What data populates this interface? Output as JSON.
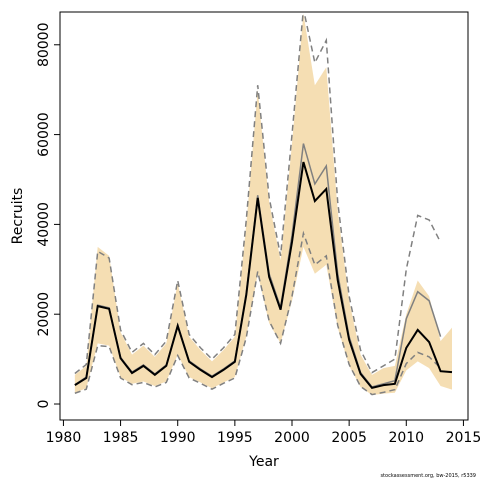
{
  "chart_data": {
    "type": "line",
    "x_label": "Year",
    "y_label": "Recruits",
    "footnote": "stockassessment.org, bw-2015, r5339",
    "x": [
      1981,
      1982,
      1983,
      1984,
      1985,
      1986,
      1987,
      1988,
      1989,
      1990,
      1991,
      1992,
      1993,
      1994,
      1995,
      1996,
      1997,
      1998,
      1999,
      2000,
      2001,
      2002,
      2003,
      2004,
      2005,
      2006,
      2007,
      2008,
      2009,
      2010,
      2011,
      2012,
      2013,
      2014
    ],
    "band": {
      "color": "#f5deb3",
      "upper": [
        6500,
        8500,
        35000,
        33000,
        16000,
        11000,
        13000,
        10500,
        13500,
        27000,
        15000,
        12000,
        9500,
        12000,
        15000,
        40000,
        70000,
        45000,
        32000,
        58000,
        87000,
        71000,
        75000,
        43000,
        23000,
        11000,
        6500,
        8000,
        8500,
        20000,
        27500,
        24000,
        14000,
        17000
      ],
      "lower": [
        2500,
        3500,
        13500,
        13000,
        6000,
        4500,
        5000,
        4000,
        5000,
        11000,
        6000,
        4800,
        3500,
        4800,
        6000,
        15000,
        29000,
        18000,
        13500,
        23000,
        35000,
        29000,
        31000,
        17000,
        8500,
        3800,
        2000,
        2300,
        2500,
        7500,
        9500,
        8000,
        4000,
        3200
      ]
    },
    "series": [
      {
        "color": "#808080",
        "style": "dashed",
        "values": [
          6800,
          8800,
          34000,
          32500,
          16500,
          11500,
          13500,
          11000,
          14000,
          27500,
          15500,
          12500,
          10000,
          12500,
          15500,
          41000,
          71000,
          46000,
          33000,
          60000,
          88000,
          76000,
          81000,
          45000,
          24000,
          12000,
          7000,
          8500,
          10000,
          30000,
          42000,
          41000,
          36000,
          null
        ]
      },
      {
        "color": "#808080",
        "style": "dashed",
        "values": [
          2400,
          3300,
          13000,
          12800,
          5800,
          4300,
          4800,
          3800,
          4800,
          10800,
          5800,
          4600,
          3300,
          4600,
          5800,
          14800,
          29500,
          18500,
          13500,
          24000,
          38000,
          31000,
          33000,
          17500,
          8800,
          3900,
          2100,
          2600,
          3200,
          9000,
          11500,
          10500,
          8000,
          null
        ]
      },
      {
        "color": "#808080",
        "style": "solid",
        "values": [
          4300,
          6000,
          22000,
          21400,
          10400,
          7100,
          8700,
          6700,
          8700,
          17600,
          9600,
          7800,
          6200,
          7800,
          9600,
          24800,
          46500,
          29000,
          21500,
          37500,
          58000,
          49000,
          53000,
          29000,
          15000,
          7000,
          3800,
          4500,
          5200,
          19000,
          25000,
          23000,
          15000,
          null
        ]
      },
      {
        "color": "#000000",
        "style": "solid",
        "values": [
          4200,
          5800,
          21800,
          21200,
          10200,
          6900,
          8500,
          6500,
          8500,
          17400,
          9400,
          7600,
          6000,
          7600,
          9400,
          24300,
          45900,
          28300,
          21000,
          36100,
          53900,
          45200,
          47900,
          27600,
          14300,
          6700,
          3600,
          4200,
          4500,
          12500,
          16500,
          13800,
          7300,
          7100
        ]
      }
    ],
    "xlim": [
      1979.7,
      2015.4
    ],
    "ylim": [
      -3560,
      87300
    ],
    "xticks": [
      1980,
      1985,
      1990,
      1995,
      2000,
      2005,
      2010,
      2015
    ],
    "yticks": [
      0,
      20000,
      40000,
      60000,
      80000
    ]
  }
}
